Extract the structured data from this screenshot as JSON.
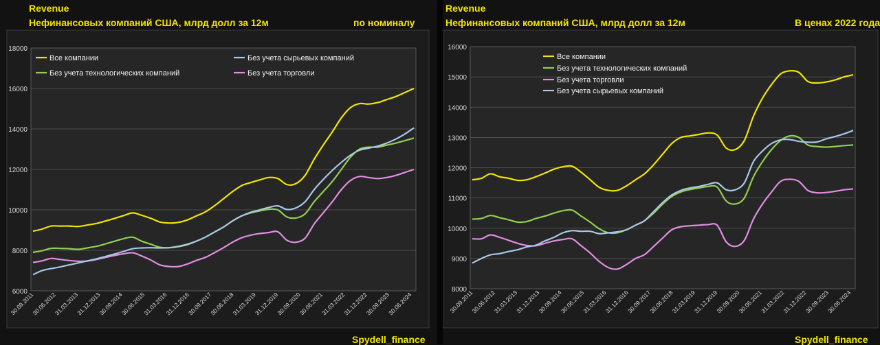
{
  "charts": [
    {
      "title": "Revenue",
      "subtitle": "Нефинансовых компаний США, млрд долл за 12м",
      "tag": "по номиналу",
      "watermark": "Spydell_finance"
    },
    {
      "title": "Revenue",
      "subtitle": "Нефинансовых компаний США, млрд долл за 12м",
      "tag": "В ценах 2022 года",
      "watermark": "Spydell_finance"
    }
  ],
  "colors": {
    "all": "#f2e600",
    "no_tech": "#92d050",
    "no_trade": "#e28de2",
    "no_raw": "#a8c8e8",
    "plot_bg": "#262626",
    "grid": "#5a5a5a",
    "tick": "#d9d9d9"
  },
  "chart_data": [
    {
      "type": "line",
      "title": "Revenue — Нефинансовых компаний США, млрд долл за 12м (по номиналу)",
      "ylim": [
        6000,
        18000
      ],
      "yticks": [
        6000,
        8000,
        10000,
        12000,
        14000,
        16000,
        18000
      ],
      "x_ticks": [
        "30.09.2011",
        "30.06.2012",
        "31.03.2013",
        "31.12.2013",
        "30.09.2014",
        "30.06.2015",
        "31.03.2016",
        "31.12.2016",
        "30.09.2017",
        "30.06.2018",
        "31.03.2019",
        "31.12.2019",
        "30.09.2020",
        "30.06.2021",
        "31.03.2022",
        "31.12.2022",
        "30.09.2023",
        "30.06.2024"
      ],
      "legend": [
        {
          "key": "all",
          "label": "Все компании"
        },
        {
          "key": "no_raw",
          "label": "Без учета сырьевых компаний"
        },
        {
          "key": "no_tech",
          "label": "Без учета технологических компаний"
        },
        {
          "key": "no_trade",
          "label": "Без учета торговли"
        }
      ],
      "series": [
        {
          "key": "all",
          "name": "Все компании",
          "values": [
            8950,
            9050,
            9200,
            9200,
            9200,
            9180,
            9250,
            9330,
            9450,
            9580,
            9720,
            9850,
            9730,
            9580,
            9400,
            9350,
            9380,
            9500,
            9700,
            9900,
            10200,
            10550,
            10900,
            11200,
            11350,
            11480,
            11600,
            11550,
            11250,
            11300,
            11700,
            12500,
            13200,
            13850,
            14550,
            15050,
            15250,
            15230,
            15300,
            15450,
            15600,
            15800,
            16000
          ]
        },
        {
          "key": "no_tech",
          "name": "Без учета технологических компаний",
          "values": [
            7900,
            7980,
            8100,
            8100,
            8080,
            8050,
            8120,
            8200,
            8320,
            8450,
            8580,
            8650,
            8450,
            8300,
            8150,
            8130,
            8200,
            8300,
            8450,
            8650,
            8900,
            9150,
            9450,
            9700,
            9850,
            9950,
            10030,
            10000,
            9650,
            9600,
            9800,
            10400,
            10900,
            11400,
            12000,
            12600,
            13000,
            13100,
            13100,
            13200,
            13300,
            13420,
            13550
          ]
        },
        {
          "key": "no_trade",
          "name": "Без учета торговли",
          "values": [
            7400,
            7480,
            7600,
            7550,
            7500,
            7460,
            7470,
            7550,
            7650,
            7750,
            7830,
            7880,
            7720,
            7520,
            7280,
            7200,
            7200,
            7320,
            7500,
            7650,
            7880,
            8130,
            8400,
            8620,
            8750,
            8830,
            8880,
            8920,
            8500,
            8400,
            8600,
            9300,
            9850,
            10400,
            11000,
            11450,
            11650,
            11600,
            11550,
            11600,
            11700,
            11850,
            12000
          ]
        },
        {
          "key": "no_raw",
          "name": "Без учета сырьевых компаний",
          "values": [
            6800,
            7000,
            7100,
            7180,
            7280,
            7380,
            7480,
            7580,
            7700,
            7820,
            7950,
            8080,
            8120,
            8130,
            8120,
            8130,
            8180,
            8280,
            8450,
            8650,
            8900,
            9150,
            9450,
            9700,
            9880,
            10000,
            10120,
            10200,
            10020,
            10100,
            10400,
            11000,
            11500,
            11950,
            12350,
            12700,
            12950,
            13050,
            13150,
            13300,
            13500,
            13750,
            14050
          ]
        }
      ]
    },
    {
      "type": "line",
      "title": "Revenue — Нефинансовых компаний США, млрд долл за 12м (В ценах 2022 года)",
      "ylim": [
        8000,
        16000
      ],
      "yticks": [
        8000,
        9000,
        10000,
        11000,
        12000,
        13000,
        14000,
        15000,
        16000
      ],
      "x_ticks": [
        "30.09.2011",
        "30.06.2012",
        "31.03.2013",
        "31.12.2013",
        "30.09.2014",
        "30.06.2015",
        "31.03.2016",
        "31.12.2016",
        "30.09.2017",
        "30.06.2018",
        "31.03.2019",
        "31.12.2019",
        "30.09.2020",
        "30.06.2021",
        "31.03.2022",
        "31.12.2022",
        "30.09.2023",
        "30.06.2024"
      ],
      "legend": [
        {
          "key": "all",
          "label": "Все компании"
        },
        {
          "key": "no_tech",
          "label": "Без учета технологических компаний"
        },
        {
          "key": "no_trade",
          "label": "Без учета торговли"
        },
        {
          "key": "no_raw",
          "label": "Без учета сырьевых компаний"
        }
      ],
      "series": [
        {
          "key": "all",
          "name": "Все компании",
          "values": [
            11600,
            11650,
            11800,
            11700,
            11650,
            11580,
            11600,
            11700,
            11820,
            11950,
            12030,
            12050,
            11850,
            11600,
            11350,
            11250,
            11250,
            11400,
            11600,
            11800,
            12100,
            12450,
            12800,
            13000,
            13050,
            13100,
            13150,
            13080,
            12650,
            12600,
            12900,
            13700,
            14300,
            14750,
            15100,
            15200,
            15150,
            14850,
            14800,
            14830,
            14900,
            15000,
            15070
          ]
        },
        {
          "key": "no_tech",
          "name": "Без учета технологических компаний",
          "values": [
            10300,
            10320,
            10420,
            10350,
            10280,
            10200,
            10220,
            10320,
            10400,
            10500,
            10580,
            10600,
            10400,
            10200,
            9980,
            9850,
            9850,
            9950,
            10100,
            10250,
            10500,
            10800,
            11050,
            11200,
            11280,
            11330,
            11380,
            11360,
            10900,
            10800,
            11000,
            11700,
            12200,
            12600,
            12900,
            13050,
            13000,
            12750,
            12700,
            12680,
            12700,
            12730,
            12750
          ]
        },
        {
          "key": "no_trade",
          "name": "Без учета торговли",
          "values": [
            9650,
            9650,
            9780,
            9700,
            9600,
            9500,
            9430,
            9420,
            9500,
            9580,
            9630,
            9650,
            9420,
            9180,
            8900,
            8700,
            8650,
            8800,
            9000,
            9130,
            9400,
            9680,
            9950,
            10050,
            10080,
            10100,
            10120,
            10100,
            9550,
            9400,
            9600,
            10300,
            10800,
            11200,
            11550,
            11620,
            11550,
            11250,
            11170,
            11180,
            11220,
            11270,
            11300
          ]
        },
        {
          "key": "no_raw",
          "name": "Без учета сырьевых компаний",
          "values": [
            8850,
            9000,
            9120,
            9160,
            9230,
            9290,
            9380,
            9440,
            9580,
            9700,
            9850,
            9920,
            9900,
            9900,
            9820,
            9850,
            9880,
            9950,
            10100,
            10250,
            10550,
            10850,
            11100,
            11250,
            11330,
            11380,
            11450,
            11500,
            11270,
            11270,
            11500,
            12200,
            12550,
            12800,
            12920,
            12930,
            12870,
            12840,
            12850,
            12950,
            13030,
            13120,
            13230
          ]
        }
      ]
    }
  ]
}
